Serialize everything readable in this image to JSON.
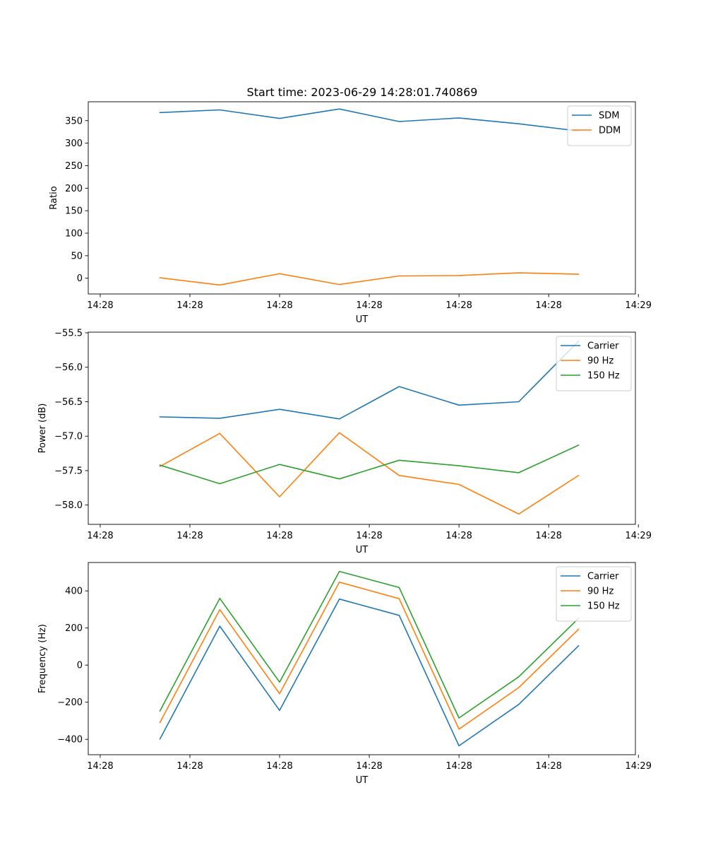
{
  "figure": {
    "title": "Start time: 2023-06-29 14:28:01.740869"
  },
  "chart_data": [
    {
      "type": "line",
      "xlabel": "UT",
      "ylabel": "Ratio",
      "x_tick_labels": [
        "14:28",
        "14:28",
        "14:28",
        "14:28",
        "14:28",
        "14:28",
        "14:29"
      ],
      "x": [
        1,
        2,
        3,
        4,
        5,
        6,
        7,
        8
      ],
      "xlim": [
        -0.2,
        8.95
      ],
      "x_ticks": [
        0,
        1.5,
        3.0,
        4.5,
        6.0,
        7.5,
        9.0
      ],
      "ylim": [
        -35,
        392
      ],
      "y_ticks": [
        0,
        50,
        100,
        150,
        200,
        250,
        300,
        350
      ],
      "y_tick_labels": [
        "0",
        "50",
        "100",
        "150",
        "200",
        "250",
        "300",
        "350"
      ],
      "legend": "top-right",
      "series": [
        {
          "name": "SDM",
          "color": "#1f77b4",
          "values": [
            368,
            374,
            355,
            376,
            348,
            356,
            343,
            327
          ]
        },
        {
          "name": "DDM",
          "color": "#ff7f0e",
          "values": [
            1,
            -15,
            10,
            -14,
            5,
            6,
            12,
            9
          ]
        }
      ]
    },
    {
      "type": "line",
      "xlabel": "UT",
      "ylabel": "Power (dB)",
      "x_tick_labels": [
        "14:28",
        "14:28",
        "14:28",
        "14:28",
        "14:28",
        "14:28",
        "14:29"
      ],
      "x": [
        1,
        2,
        3,
        4,
        5,
        6,
        7,
        8
      ],
      "xlim": [
        -0.2,
        8.95
      ],
      "x_ticks": [
        0,
        1.5,
        3.0,
        4.5,
        6.0,
        7.5,
        9.0
      ],
      "ylim": [
        -58.28,
        -55.49
      ],
      "y_ticks": [
        -58.0,
        -57.5,
        -57.0,
        -56.5,
        -56.0,
        -55.5
      ],
      "y_tick_labels": [
        "−58.0",
        "−57.5",
        "−57.0",
        "−56.5",
        "−56.0",
        "−55.5"
      ],
      "legend": "top-right",
      "series": [
        {
          "name": "Carrier",
          "color": "#1f77b4",
          "values": [
            -56.72,
            -56.74,
            -56.61,
            -56.75,
            -56.28,
            -56.55,
            -56.5,
            -55.62
          ]
        },
        {
          "name": "90 Hz",
          "color": "#ff7f0e",
          "values": [
            -57.44,
            -56.96,
            -57.88,
            -56.95,
            -57.57,
            -57.7,
            -58.13,
            -57.57
          ]
        },
        {
          "name": "150 Hz",
          "color": "#2ca02c",
          "values": [
            -57.42,
            -57.69,
            -57.41,
            -57.62,
            -57.35,
            -57.43,
            -57.53,
            -57.13
          ]
        }
      ]
    },
    {
      "type": "line",
      "xlabel": "UT",
      "ylabel": "Frequency (Hz)",
      "x_tick_labels": [
        "14:28",
        "14:28",
        "14:28",
        "14:28",
        "14:28",
        "14:28",
        "14:29"
      ],
      "x": [
        1,
        2,
        3,
        4,
        5,
        6,
        7,
        8
      ],
      "xlim": [
        -0.2,
        8.95
      ],
      "x_ticks": [
        0,
        1.5,
        3.0,
        4.5,
        6.0,
        7.5,
        9.0
      ],
      "ylim": [
        -483,
        553
      ],
      "y_ticks": [
        -400,
        -200,
        0,
        200,
        400
      ],
      "y_tick_labels": [
        "−400",
        "−200",
        "0",
        "200",
        "400"
      ],
      "legend": "top-right",
      "series": [
        {
          "name": "Carrier",
          "color": "#1f77b4",
          "values": [
            -398,
            210,
            -244,
            356,
            268,
            -435,
            -212,
            104
          ]
        },
        {
          "name": "90 Hz",
          "color": "#ff7f0e",
          "values": [
            -309,
            299,
            -154,
            447,
            358,
            -345,
            -121,
            193
          ]
        },
        {
          "name": "150 Hz",
          "color": "#2ca02c",
          "values": [
            -247,
            360,
            -92,
            505,
            418,
            -285,
            -63,
            252
          ]
        }
      ]
    }
  ]
}
